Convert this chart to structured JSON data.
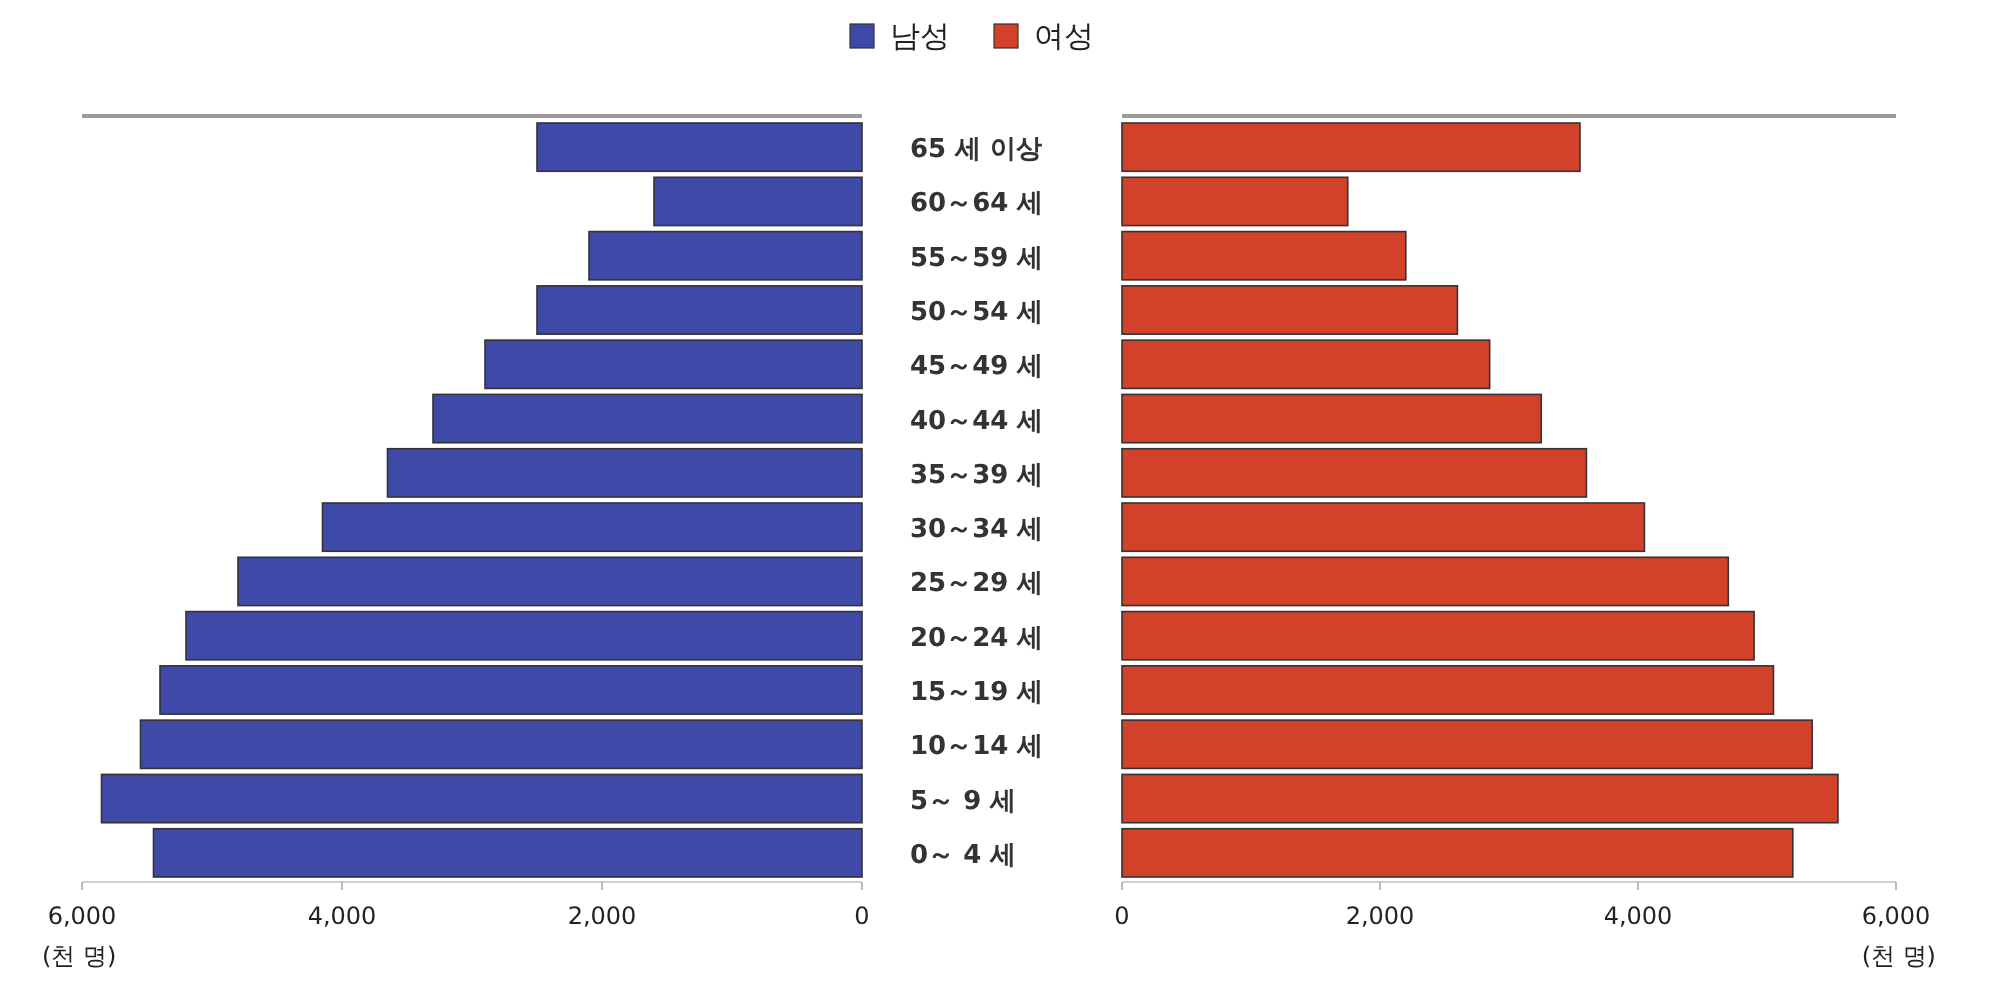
{
  "chart_data": [
    {
      "type": "bar",
      "orientation": "horizontal",
      "categories": [
        "65 세 이상",
        "60～64 세",
        "55～59 세",
        "50～54 세",
        "45～49 세",
        "40～44 세",
        "35～39 세",
        "30～34 세",
        "25～29 세",
        "20～24 세",
        "15～19 세",
        "10～14 세",
        "5～ 9 세",
        "0～ 4 세"
      ],
      "series": [
        {
          "name": "남성",
          "color": "#3f4aa8",
          "values": [
            2500,
            1600,
            2100,
            2500,
            2900,
            3300,
            3650,
            4150,
            4800,
            5200,
            5400,
            5550,
            5850,
            5450
          ]
        }
      ],
      "xlim": [
        6000,
        0
      ],
      "xticks": [
        {
          "value": 6000,
          "label": "6,000"
        },
        {
          "value": 4000,
          "label": "4,000"
        },
        {
          "value": 2000,
          "label": "2,000"
        },
        0
      ],
      "xlabel": "(천 명)",
      "legend": "top"
    },
    {
      "type": "bar",
      "orientation": "horizontal",
      "categories": [
        null,
        null,
        null,
        null,
        null,
        null,
        null,
        null,
        null,
        null,
        null,
        null,
        null,
        null
      ],
      "tick_labels": "x",
      "series": [
        {
          "name": "여성",
          "color": "#d2412a",
          "values": [
            3550,
            1750,
            2200,
            2600,
            2850,
            3250,
            3600,
            4050,
            4700,
            4900,
            5050,
            5350,
            5550,
            5200
          ]
        }
      ],
      "xlim": [
        0,
        6000
      ],
      "xticks": [
        0,
        {
          "value": 2000,
          "label": "2,000"
        },
        {
          "value": 4000,
          "label": "4,000"
        },
        {
          "value": 6000,
          "label": "6,000"
        }
      ],
      "xlabel": "(천 명)",
      "legend": "top"
    }
  ]
}
